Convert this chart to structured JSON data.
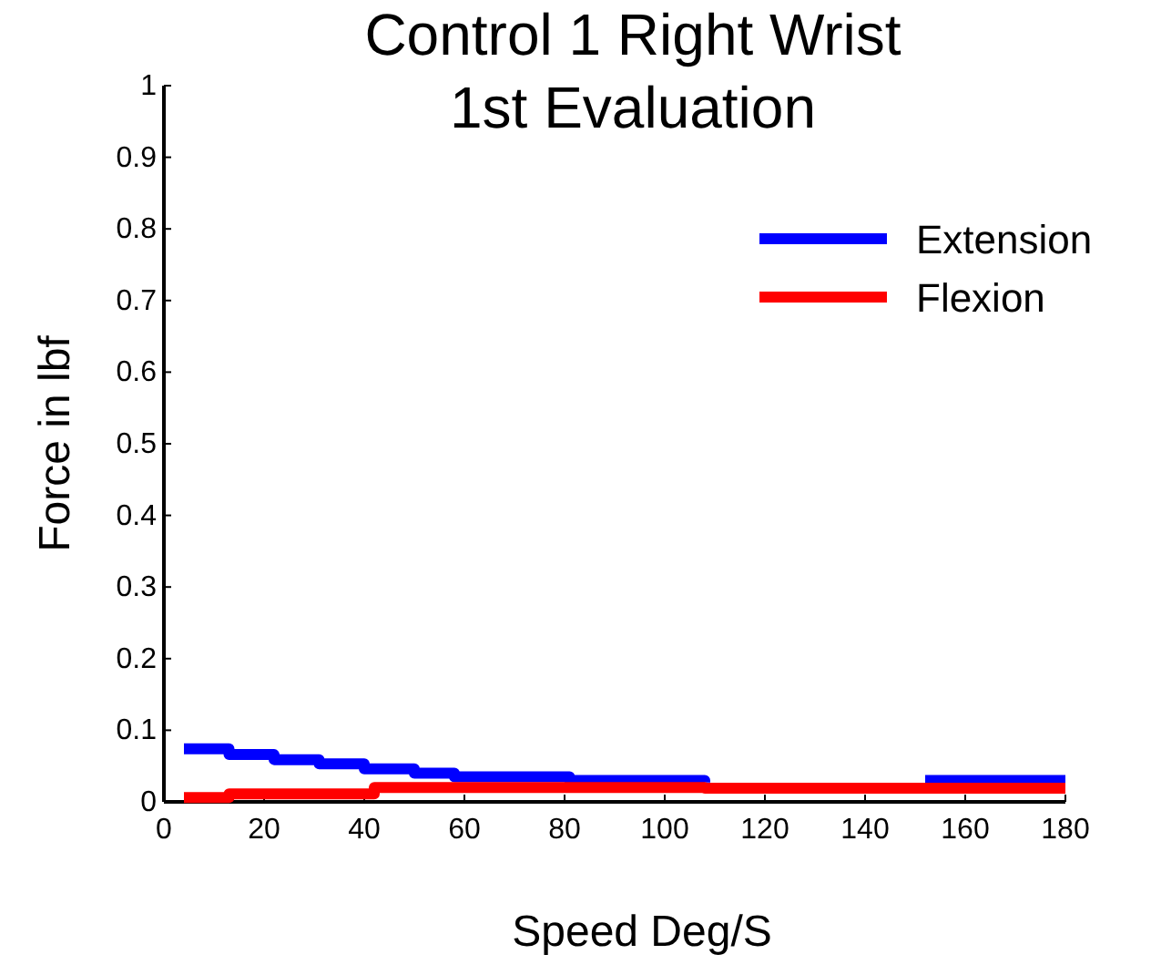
{
  "chart_data": {
    "type": "step",
    "title": "Control 1 Right Wrist\n1st Evaluation",
    "xlabel": "Speed Deg/S",
    "ylabel": "Force in lbf",
    "xlim": [
      0,
      180
    ],
    "xticks": [
      0,
      20,
      40,
      60,
      80,
      100,
      120,
      140,
      160,
      180
    ],
    "ylim": [
      0,
      1
    ],
    "yticks": [
      0,
      0.1,
      0.2,
      0.3,
      0.4,
      0.5,
      0.6,
      0.7,
      0.8,
      0.9,
      1
    ],
    "legend": "top right",
    "grid": false,
    "line_style": "solid",
    "marker": "none",
    "series": [
      {
        "name": "Extension",
        "color": "#0000ff",
        "x": [
          4,
          13,
          22,
          31,
          40,
          50,
          58,
          81,
          108,
          110,
          152,
          180
        ],
        "values": [
          0.074,
          0.066,
          0.059,
          0.053,
          0.046,
          0.04,
          0.035,
          0.03,
          0.027,
          null,
          0.03,
          0.03
        ]
      },
      {
        "name": "Flexion",
        "color": "#ff0000",
        "x": [
          4,
          13,
          42,
          108,
          180
        ],
        "values": [
          0.006,
          0.011,
          0.02,
          0.019,
          0.019
        ]
      }
    ]
  }
}
